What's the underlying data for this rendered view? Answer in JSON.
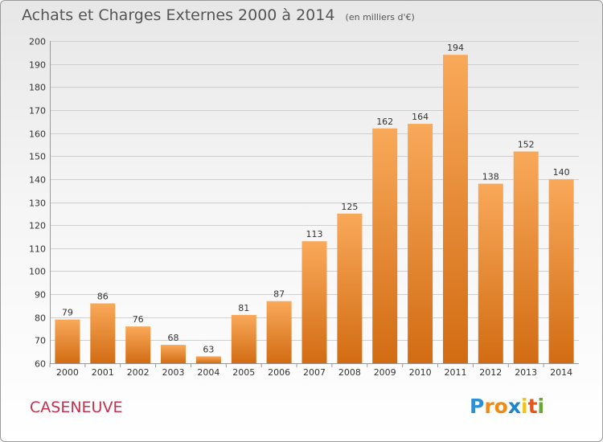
{
  "header": {
    "title": "Achats et Charges Externes 2000 à 2014",
    "unit": "(en milliers d'€)"
  },
  "commune": "CASENEUVE",
  "logo": {
    "text": "Proxiti",
    "letter_colors": [
      "#2f8fd6",
      "#f08a14",
      "#f08a14",
      "#1d84c8",
      "#f0c418",
      "#e8571a",
      "#66a832"
    ]
  },
  "colors": {
    "bar_light": "#f9a95a",
    "bar_dark": "#d26c13",
    "grid": "#cfcfcf",
    "commune": "#c5304f"
  },
  "chart_data": {
    "type": "bar",
    "title": "Achats et Charges Externes 2000 à 2014",
    "subtitle": "(en milliers d'€)",
    "xlabel": "",
    "ylabel": "",
    "ylim": [
      60,
      200
    ],
    "yticks": [
      60,
      70,
      80,
      90,
      100,
      110,
      120,
      130,
      140,
      150,
      160,
      170,
      180,
      190,
      200
    ],
    "grid": true,
    "categories": [
      "2000",
      "2001",
      "2002",
      "2003",
      "2004",
      "2005",
      "2006",
      "2007",
      "2008",
      "2009",
      "2010",
      "2011",
      "2012",
      "2013",
      "2014"
    ],
    "values": [
      79,
      86,
      76,
      68,
      63,
      81,
      87,
      113,
      125,
      162,
      164,
      194,
      138,
      152,
      140
    ]
  }
}
